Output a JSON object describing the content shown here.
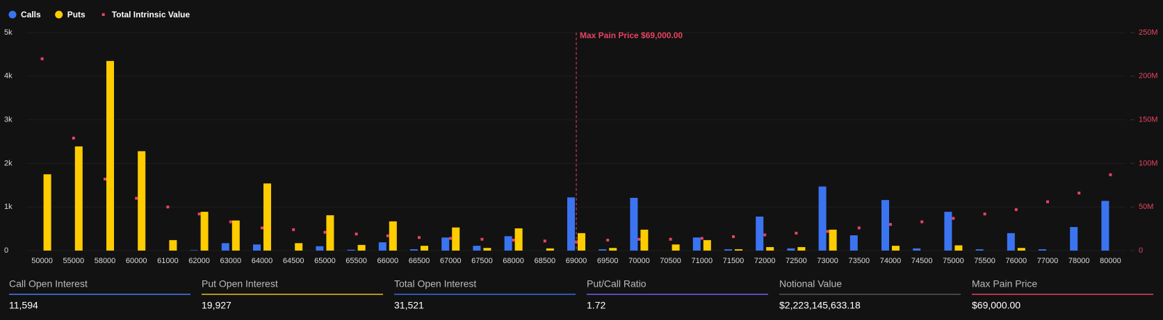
{
  "chart_data": {
    "type": "bar",
    "grid": true,
    "legend": "top-left",
    "categories": [
      "50000",
      "55000",
      "58000",
      "60000",
      "61000",
      "62000",
      "63000",
      "64000",
      "64500",
      "65000",
      "65500",
      "66000",
      "66500",
      "67000",
      "67500",
      "68000",
      "68500",
      "69000",
      "69500",
      "70000",
      "70500",
      "71000",
      "71500",
      "72000",
      "72500",
      "73000",
      "73500",
      "74000",
      "74500",
      "75000",
      "75500",
      "76000",
      "77000",
      "78000",
      "80000"
    ],
    "series": [
      {
        "name": "Calls",
        "color": "#3b74f0",
        "axis": "y",
        "values": [
          0,
          0,
          0,
          0,
          0,
          10,
          170,
          140,
          0,
          100,
          20,
          190,
          30,
          300,
          110,
          330,
          0,
          1220,
          30,
          1210,
          0,
          300,
          30,
          780,
          50,
          1470,
          350,
          1160,
          50,
          890,
          30,
          400,
          30,
          540,
          1140
        ]
      },
      {
        "name": "Puts",
        "color": "#ffcc00",
        "axis": "y",
        "values": [
          1750,
          2390,
          4350,
          2280,
          240,
          890,
          690,
          1540,
          170,
          810,
          130,
          670,
          110,
          530,
          60,
          510,
          50,
          400,
          60,
          480,
          140,
          240,
          30,
          80,
          80,
          480,
          0,
          110,
          0,
          120,
          0,
          60,
          0,
          0,
          0
        ]
      },
      {
        "name": "Total Intrinsic Value",
        "color": "#e8435f",
        "axis": "y2",
        "values": [
          220000000,
          129000000,
          82000000,
          60000000,
          50000000,
          42000000,
          33000000,
          26000000,
          24000000,
          21000000,
          19000000,
          17000000,
          15000000,
          14000000,
          13000000,
          12000000,
          11000000,
          10000000,
          12000000,
          13000000,
          13000000,
          14000000,
          16000000,
          18000000,
          20000000,
          22000000,
          26000000,
          30000000,
          33000000,
          37000000,
          42000000,
          47000000,
          56000000,
          66000000,
          87000000
        ]
      }
    ],
    "ylim": [
      0,
      5000
    ],
    "yticks": [
      0,
      {
        "value": 1000,
        "label": "1k"
      },
      {
        "value": 2000,
        "label": "2k"
      },
      {
        "value": 3000,
        "label": "3k"
      },
      {
        "value": 4000,
        "label": "4k"
      },
      {
        "value": 5000,
        "label": "5k"
      }
    ],
    "y2lim": [
      0,
      250000000
    ],
    "y2ticks": [
      0,
      {
        "value": 50000000,
        "label": "50M"
      },
      {
        "value": 100000000,
        "label": "100M"
      },
      {
        "value": 150000000,
        "label": "150M"
      },
      {
        "value": 200000000,
        "label": "200M"
      },
      {
        "value": 250000000,
        "label": "250M"
      }
    ],
    "annotation": {
      "text": "Max Pain Price $69,000.00",
      "x": "69000",
      "color": "#e8435f"
    }
  },
  "stats": [
    {
      "label": "Call Open Interest",
      "value": "11,594",
      "color": "#4a7cf0"
    },
    {
      "label": "Put Open Interest",
      "value": "19,927",
      "color": "#f2c01c"
    },
    {
      "label": "Total Open Interest",
      "value": "31,521",
      "color": "#3b6fe0"
    },
    {
      "label": "Put/Call Ratio",
      "value": "1.72",
      "color": "#7b5cf0"
    },
    {
      "label": "Notional Value",
      "value": "$2,223,145,633.18",
      "color": "#555555"
    },
    {
      "label": "Max Pain Price",
      "value": "$69,000.00",
      "color": "#e8435f"
    }
  ]
}
